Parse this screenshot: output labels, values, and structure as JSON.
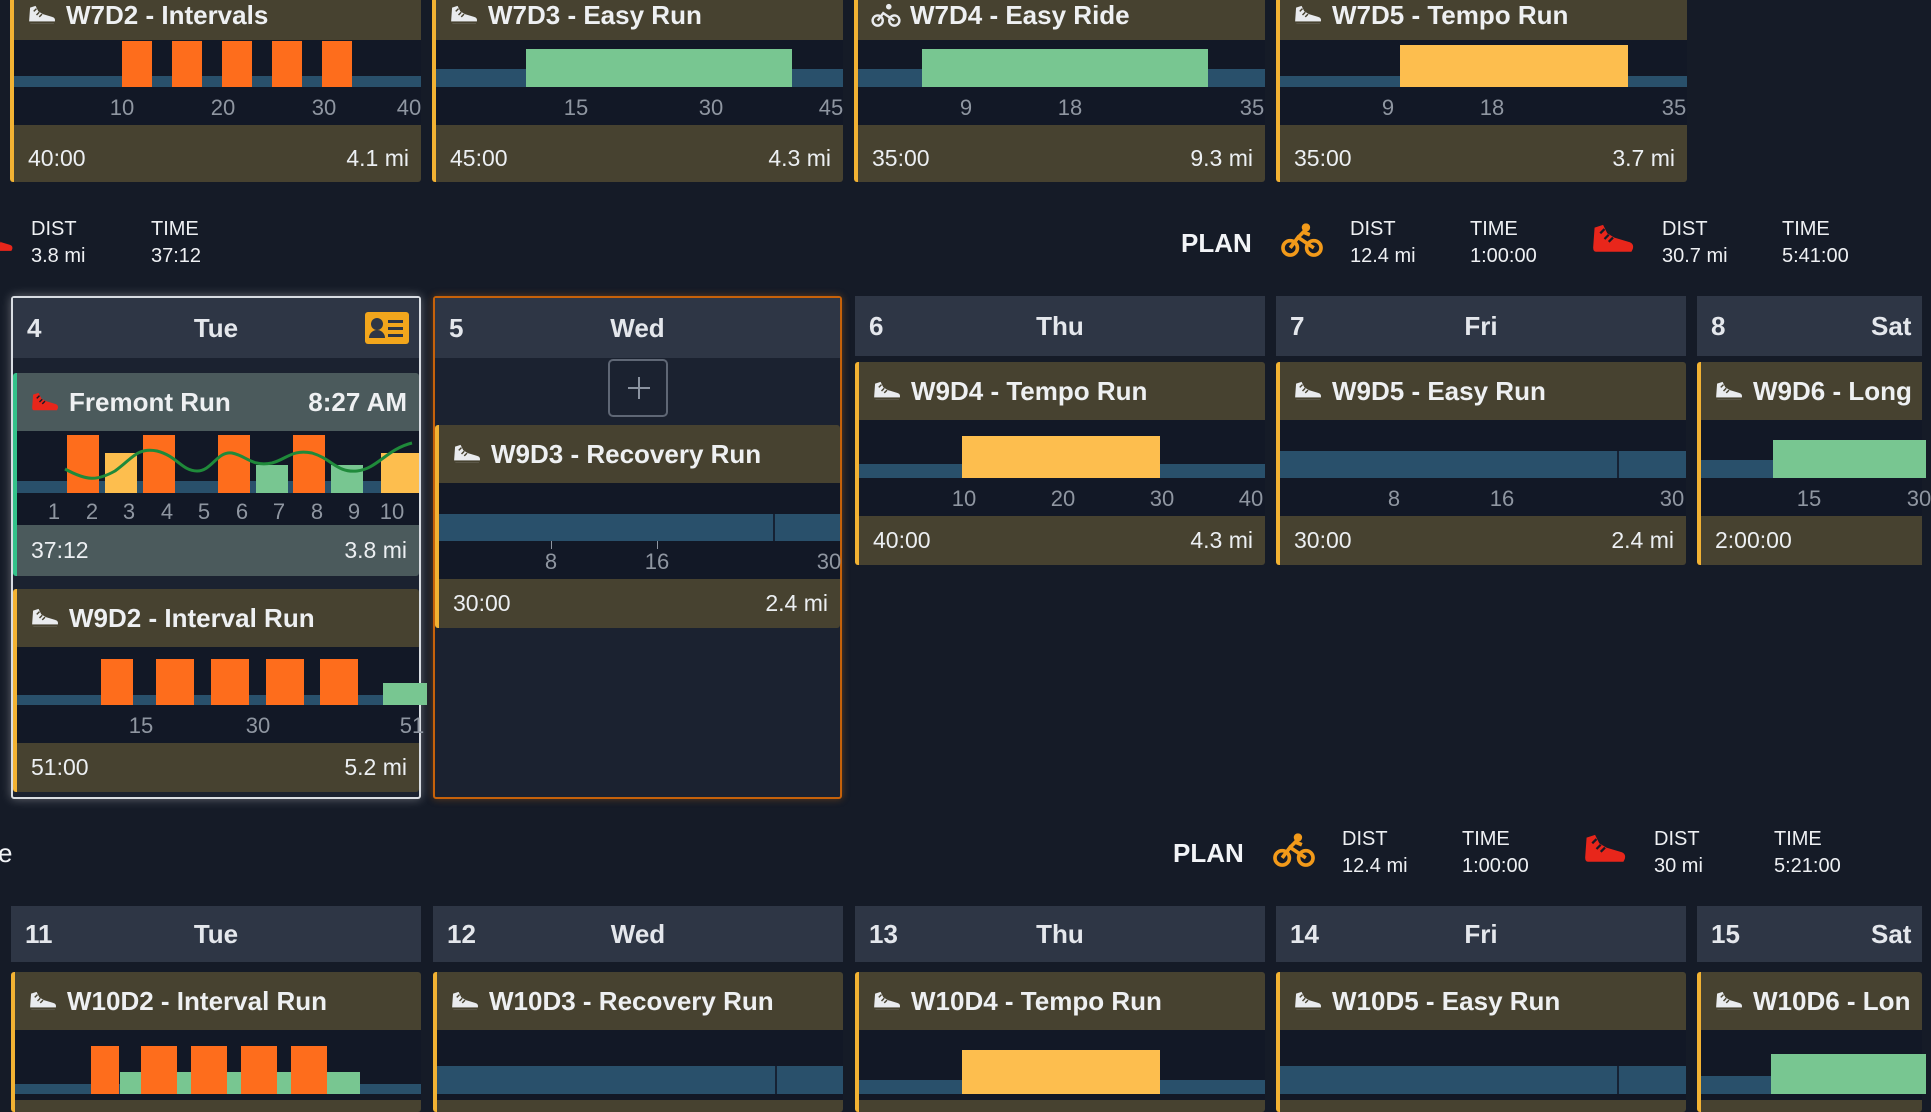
{
  "colors": {
    "accent": "#f2b233",
    "done": "#34c28a",
    "interval": "#fe6d1c",
    "tempo": "#fdbe4e",
    "easy": "#78c691",
    "base": "#29506b"
  },
  "week_top": {
    "cards": [
      {
        "title": "W7D2 - Intervals",
        "icon": "run-shoe-icon",
        "ticks": [
          "10",
          "20",
          "30",
          "40"
        ],
        "time": "40:00",
        "dist": "4.1 mi"
      },
      {
        "title": "W7D3 - Easy Run",
        "icon": "run-shoe-icon",
        "ticks": [
          "15",
          "30",
          "45"
        ],
        "time": "45:00",
        "dist": "4.3 mi"
      },
      {
        "title": "W7D4 - Easy Ride",
        "icon": "bike-icon",
        "ticks": [
          "9",
          "18",
          "35"
        ],
        "time": "35:00",
        "dist": "9.3 mi"
      },
      {
        "title": "W7D5 - Tempo Run",
        "icon": "run-shoe-icon",
        "ticks": [
          "9",
          "18",
          "35"
        ],
        "time": "35:00",
        "dist": "3.7 mi"
      }
    ]
  },
  "summary1": {
    "left_dist_label": "DIST",
    "left_dist": "3.8 mi",
    "left_time_label": "TIME",
    "left_time": "37:12",
    "plan": "PLAN",
    "bike_dist_label": "DIST",
    "bike_dist": "12.4 mi",
    "bike_time_label": "TIME",
    "bike_time": "1:00:00",
    "run_dist_label": "DIST",
    "run_dist": "30.7 mi",
    "run_time_label": "TIME",
    "run_time": "5:41:00"
  },
  "week_mid": {
    "days": [
      {
        "num": "4",
        "name": "Tue"
      },
      {
        "num": "5",
        "name": "Wed"
      },
      {
        "num": "6",
        "name": "Thu"
      },
      {
        "num": "7",
        "name": "Fri"
      },
      {
        "num": "8",
        "name": "Sat"
      }
    ],
    "fremont": {
      "title": "Fremont Run",
      "time_of_day": "8:27 AM",
      "laps": [
        "1",
        "2",
        "3",
        "4",
        "5",
        "6",
        "7",
        "8",
        "9",
        "10"
      ],
      "time": "37:12",
      "dist": "3.8 mi"
    },
    "w9d2": {
      "title": "W9D2 - Interval Run",
      "ticks": [
        "15",
        "30",
        "51"
      ],
      "time": "51:00",
      "dist": "5.2 mi"
    },
    "w9d3": {
      "title": "W9D3 - Recovery Run",
      "ticks": [
        "8",
        "16",
        "30"
      ],
      "time": "30:00",
      "dist": "2.4 mi"
    },
    "w9d4": {
      "title": "W9D4 - Tempo Run",
      "ticks": [
        "10",
        "20",
        "30",
        "40"
      ],
      "time": "40:00",
      "dist": "4.3 mi"
    },
    "w9d5": {
      "title": "W9D5 - Easy Run",
      "ticks": [
        "8",
        "16",
        "30"
      ],
      "time": "30:00",
      "dist": "2.4 mi"
    },
    "w9d6": {
      "title": "W9D6 - Long",
      "ticks": [
        "15",
        "30"
      ],
      "time": "2:00:00"
    }
  },
  "summary2": {
    "left_partial": "e",
    "plan": "PLAN",
    "bike_dist_label": "DIST",
    "bike_dist": "12.4 mi",
    "bike_time_label": "TIME",
    "bike_time": "1:00:00",
    "run_dist_label": "DIST",
    "run_dist": "30 mi",
    "run_time_label": "TIME",
    "run_time": "5:21:00"
  },
  "week_bot": {
    "days": [
      {
        "num": "11",
        "name": "Tue"
      },
      {
        "num": "12",
        "name": "Wed"
      },
      {
        "num": "13",
        "name": "Thu"
      },
      {
        "num": "14",
        "name": "Fri"
      },
      {
        "num": "15",
        "name": "Sat"
      }
    ],
    "cards": [
      {
        "title": "W10D2 - Interval Run"
      },
      {
        "title": "W10D3 - Recovery Run"
      },
      {
        "title": "W10D4 - Tempo Run"
      },
      {
        "title": "W10D5 - Easy Run"
      },
      {
        "title": "W10D6 - Lon"
      }
    ]
  }
}
